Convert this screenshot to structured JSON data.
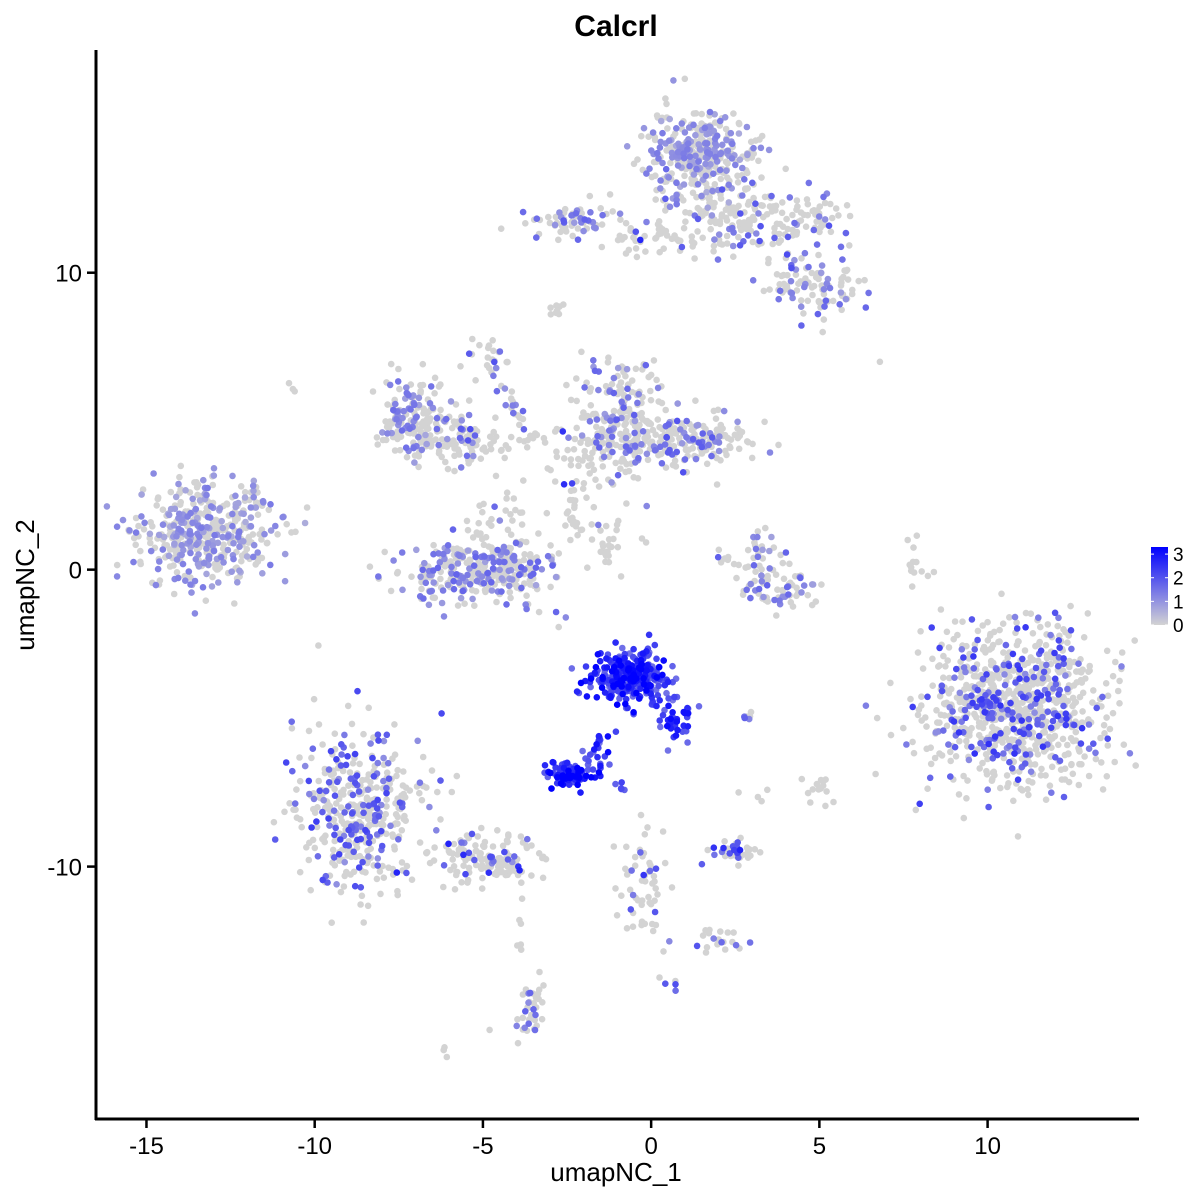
{
  "chart_data": {
    "type": "scatter",
    "title": "Calcrl",
    "xlabel": "umapNC_1",
    "ylabel": "umapNC_2",
    "xlim": [
      -16.5,
      14.5
    ],
    "ylim": [
      -18.5,
      17.5
    ],
    "x_ticks": [
      -15,
      -10,
      -5,
      0,
      5,
      10
    ],
    "x_tick_labels": [
      "-15",
      "-10",
      "-5",
      "0",
      "5",
      "10"
    ],
    "y_ticks": [
      -10,
      0,
      10
    ],
    "y_tick_labels": [
      "-10",
      "0",
      "10"
    ],
    "grid": false,
    "legend": {
      "placement": "right",
      "type": "colorbar",
      "ticks": [
        0,
        1,
        2,
        3
      ],
      "labels": [
        "0",
        "1",
        "2",
        "3"
      ],
      "range": [
        0,
        3.3
      ],
      "color_low": "#d3d3d3",
      "color_high": "#0000ff"
    },
    "clusters": [
      {
        "center": [
          -13.3,
          1.1
        ],
        "spread": [
          0.95,
          0.85
        ],
        "n": 420,
        "mean_expr": 0.45,
        "expr_frac": 0.45
      },
      {
        "center": [
          -11.8,
          2.4
        ],
        "spread": [
          0.25,
          0.35
        ],
        "n": 12,
        "mean_expr": 0.3,
        "expr_frac": 0.3
      },
      {
        "center": [
          -7.0,
          5.0
        ],
        "spread": [
          0.55,
          0.75
        ],
        "n": 170,
        "mean_expr": 0.4,
        "expr_frac": 0.35
      },
      {
        "center": [
          -5.5,
          4.3
        ],
        "spread": [
          0.55,
          0.45
        ],
        "n": 80,
        "mean_expr": 0.3,
        "expr_frac": 0.2
      },
      {
        "center": [
          -4.9,
          7.0
        ],
        "spread": [
          0.25,
          0.45
        ],
        "n": 18,
        "mean_expr": 0.5,
        "expr_frac": 0.3
      },
      {
        "center": [
          -5.0,
          -0.1
        ],
        "spread": [
          1.15,
          0.55
        ],
        "n": 330,
        "mean_expr": 0.5,
        "expr_frac": 0.4
      },
      {
        "center": [
          -4.6,
          1.7
        ],
        "spread": [
          0.35,
          0.6
        ],
        "n": 30,
        "mean_expr": 0.2,
        "expr_frac": 0.1
      },
      {
        "center": [
          -10.6,
          6.1
        ],
        "spread": [
          0.1,
          0.1
        ],
        "n": 3,
        "mean_expr": 0.0,
        "expr_frac": 0.0
      },
      {
        "center": [
          -0.9,
          5.0
        ],
        "spread": [
          0.65,
          1.0
        ],
        "n": 230,
        "mean_expr": 0.4,
        "expr_frac": 0.3
      },
      {
        "center": [
          1.2,
          4.3
        ],
        "spread": [
          0.9,
          0.5
        ],
        "n": 170,
        "mean_expr": 0.45,
        "expr_frac": 0.3
      },
      {
        "center": [
          -2.0,
          3.3
        ],
        "spread": [
          0.5,
          0.6
        ],
        "n": 35,
        "mean_expr": 0.3,
        "expr_frac": 0.15
      },
      {
        "center": [
          -1.6,
          1.2
        ],
        "spread": [
          0.7,
          0.3
        ],
        "n": 20,
        "mean_expr": 0.1,
        "expr_frac": 0.05
      },
      {
        "center": [
          1.5,
          14.0
        ],
        "spread": [
          0.8,
          0.75
        ],
        "n": 340,
        "mean_expr": 0.45,
        "expr_frac": 0.45
      },
      {
        "center": [
          2.7,
          11.8
        ],
        "spread": [
          1.2,
          0.6
        ],
        "n": 150,
        "mean_expr": 0.3,
        "expr_frac": 0.2
      },
      {
        "center": [
          -2.5,
          11.7
        ],
        "spread": [
          0.75,
          0.3
        ],
        "n": 70,
        "mean_expr": 0.35,
        "expr_frac": 0.25
      },
      {
        "center": [
          0.1,
          11.1
        ],
        "spread": [
          0.9,
          0.25
        ],
        "n": 30,
        "mean_expr": 0.2,
        "expr_frac": 0.1
      },
      {
        "center": [
          5.0,
          9.5
        ],
        "spread": [
          0.8,
          0.5
        ],
        "n": 90,
        "mean_expr": 0.45,
        "expr_frac": 0.35
      },
      {
        "center": [
          5.0,
          11.8
        ],
        "spread": [
          0.6,
          0.35
        ],
        "n": 40,
        "mean_expr": 0.3,
        "expr_frac": 0.2
      },
      {
        "center": [
          -2.9,
          8.7
        ],
        "spread": [
          0.2,
          0.15
        ],
        "n": 8,
        "mean_expr": 0.0,
        "expr_frac": 0.0
      },
      {
        "center": [
          3.8,
          -0.5
        ],
        "spread": [
          0.6,
          0.5
        ],
        "n": 75,
        "mean_expr": 0.45,
        "expr_frac": 0.35
      },
      {
        "center": [
          3.3,
          0.8
        ],
        "spread": [
          0.3,
          0.45
        ],
        "n": 18,
        "mean_expr": 0.35,
        "expr_frac": 0.3
      },
      {
        "center": [
          8.0,
          0.0
        ],
        "spread": [
          0.2,
          0.5
        ],
        "n": 12,
        "mean_expr": 0.0,
        "expr_frac": 0.0
      },
      {
        "center": [
          10.8,
          -4.6
        ],
        "spread": [
          1.35,
          1.35
        ],
        "n": 900,
        "mean_expr": 0.45,
        "expr_frac": 0.25
      },
      {
        "center": [
          -8.7,
          -8.2
        ],
        "spread": [
          1.0,
          1.4
        ],
        "n": 420,
        "mean_expr": 0.5,
        "expr_frac": 0.3
      },
      {
        "center": [
          -4.9,
          -9.8
        ],
        "spread": [
          0.9,
          0.45
        ],
        "n": 100,
        "mean_expr": 0.4,
        "expr_frac": 0.2
      },
      {
        "center": [
          -0.6,
          -3.6
        ],
        "spread": [
          0.55,
          0.45
        ],
        "n": 300,
        "mean_expr": 2.45,
        "expr_frac": 1.0
      },
      {
        "center": [
          0.7,
          -4.9
        ],
        "spread": [
          0.3,
          0.45
        ],
        "n": 40,
        "mean_expr": 2.3,
        "expr_frac": 1.0
      },
      {
        "center": [
          -2.4,
          -6.9
        ],
        "spread": [
          0.35,
          0.22
        ],
        "n": 90,
        "mean_expr": 2.7,
        "expr_frac": 1.0
      },
      {
        "center": [
          -1.6,
          -6.2
        ],
        "spread": [
          0.2,
          0.35
        ],
        "n": 12,
        "mean_expr": 2.3,
        "expr_frac": 1.0
      },
      {
        "center": [
          -0.9,
          -7.4
        ],
        "spread": [
          0.1,
          0.1
        ],
        "n": 5,
        "mean_expr": 2.0,
        "expr_frac": 1.0
      },
      {
        "center": [
          2.5,
          -9.5
        ],
        "spread": [
          0.4,
          0.15
        ],
        "n": 45,
        "mean_expr": 0.4,
        "expr_frac": 0.2
      },
      {
        "center": [
          5.0,
          -7.4
        ],
        "spread": [
          0.2,
          0.25
        ],
        "n": 15,
        "mean_expr": 0.0,
        "expr_frac": 0.0
      },
      {
        "center": [
          -0.3,
          -11.0
        ],
        "spread": [
          0.45,
          1.0
        ],
        "n": 45,
        "mean_expr": 0.3,
        "expr_frac": 0.2
      },
      {
        "center": [
          2.0,
          -12.5
        ],
        "spread": [
          0.55,
          0.25
        ],
        "n": 20,
        "mean_expr": 0.3,
        "expr_frac": 0.2
      },
      {
        "center": [
          -3.6,
          -14.9
        ],
        "spread": [
          0.25,
          0.55
        ],
        "n": 35,
        "mean_expr": 0.45,
        "expr_frac": 0.35
      },
      {
        "center": [
          2.8,
          -5.0
        ],
        "spread": [
          0.15,
          0.1
        ],
        "n": 6,
        "mean_expr": 0.7,
        "expr_frac": 0.5
      },
      {
        "center": [
          3.4,
          -7.6
        ],
        "spread": [
          0.1,
          0.1
        ],
        "n": 3,
        "mean_expr": 0.0,
        "expr_frac": 0.0
      },
      {
        "center": [
          0.6,
          -14.0
        ],
        "spread": [
          0.1,
          0.1
        ],
        "n": 4,
        "mean_expr": 1.0,
        "expr_frac": 0.6
      },
      {
        "center": [
          -6.1,
          -16.2
        ],
        "spread": [
          0.15,
          0.1
        ],
        "n": 3,
        "mean_expr": 0.3,
        "expr_frac": 0.3
      },
      {
        "center": [
          -3.9,
          -12.7
        ],
        "spread": [
          0.05,
          0.55
        ],
        "n": 6,
        "mean_expr": 0.0,
        "expr_frac": 0.0
      }
    ],
    "paths": [
      {
        "points": [
          [
            -4.7,
            7.3
          ],
          [
            -4.2,
            5.8
          ],
          [
            -3.8,
            4.6
          ]
        ],
        "n": 22,
        "jitter": 0.12,
        "mean_expr": 0.4,
        "expr_frac": 0.3
      },
      {
        "points": [
          [
            -4.5,
            4.2
          ],
          [
            -3.5,
            4.4
          ],
          [
            -2.5,
            4.6
          ]
        ],
        "n": 18,
        "jitter": 0.15,
        "mean_expr": 0.2,
        "expr_frac": 0.1
      },
      {
        "points": [
          [
            -1.7,
            1.2
          ],
          [
            -1.3,
            0.6
          ],
          [
            -1.2,
            0.1
          ]
        ],
        "n": 10,
        "jitter": 0.08,
        "mean_expr": 0.0,
        "expr_frac": 0.0
      },
      {
        "points": [
          [
            -2.2,
            2.8
          ],
          [
            -2.3,
            2.0
          ],
          [
            -2.5,
            1.3
          ]
        ],
        "n": 8,
        "jitter": 0.1,
        "mean_expr": 0.0,
        "expr_frac": 0.0
      },
      {
        "points": [
          [
            1.0,
            5.1
          ],
          [
            -0.3,
            4.4
          ],
          [
            -1.3,
            4.0
          ]
        ],
        "n": 25,
        "jitter": 0.15,
        "mean_expr": 0.3,
        "expr_frac": 0.2
      },
      {
        "points": [
          [
            -0.1,
            14.6
          ],
          [
            0.4,
            12.5
          ],
          [
            0.2,
            11.2
          ]
        ],
        "n": 20,
        "jitter": 0.2,
        "mean_expr": 0.3,
        "expr_frac": 0.2
      },
      {
        "points": [
          [
            3.6,
            11.1
          ],
          [
            4.2,
            10.4
          ],
          [
            4.5,
            9.5
          ]
        ],
        "n": 15,
        "jitter": 0.15,
        "mean_expr": 0.3,
        "expr_frac": 0.2
      },
      {
        "points": [
          [
            -2.0,
            -6.6
          ],
          [
            -1.6,
            -6.0
          ],
          [
            -1.2,
            -5.4
          ]
        ],
        "n": 12,
        "jitter": 0.08,
        "mean_expr": 2.3,
        "expr_frac": 1.0
      },
      {
        "points": [
          [
            -6.2,
            -8.8
          ],
          [
            -4.6,
            -9.7
          ],
          [
            -3.8,
            -10.4
          ]
        ],
        "n": 40,
        "jitter": 0.22,
        "mean_expr": 0.3,
        "expr_frac": 0.2
      },
      {
        "points": [
          [
            -0.2,
            -9.2
          ],
          [
            0.0,
            -10.5
          ],
          [
            0.1,
            -12.0
          ]
        ],
        "n": 14,
        "jitter": 0.15,
        "mean_expr": 0.2,
        "expr_frac": 0.1
      },
      {
        "points": [
          [
            3.0,
            -0.1
          ],
          [
            2.4,
            0.3
          ],
          [
            2.0,
            0.7
          ]
        ],
        "n": 10,
        "jitter": 0.1,
        "mean_expr": 0.3,
        "expr_frac": 0.2
      },
      {
        "points": [
          [
            -2.5,
            2.0
          ],
          [
            -2.2,
            1.4
          ],
          [
            -1.8,
            1.0
          ]
        ],
        "n": 6,
        "jitter": 0.05,
        "mean_expr": 0.0,
        "expr_frac": 0.0
      }
    ],
    "outliers": [
      [
        -2.8,
        8.7
      ],
      [
        6.8,
        7.0
      ],
      [
        -3.1,
        1.9
      ],
      [
        -2.4,
        1.0
      ],
      [
        -1.5,
        0.6
      ],
      [
        -4.8,
        -15.5
      ],
      [
        4.0,
        13.5
      ],
      [
        5.1,
        8.0
      ],
      [
        -11.7,
        2.6
      ],
      [
        -12.6,
        2.2
      ],
      [
        -3.8,
        3.0
      ],
      [
        -2.8,
        3.8
      ],
      [
        -3.2,
        -14.0
      ],
      [
        1.5,
        4.0
      ],
      [
        2.6,
        -7.5
      ]
    ]
  }
}
